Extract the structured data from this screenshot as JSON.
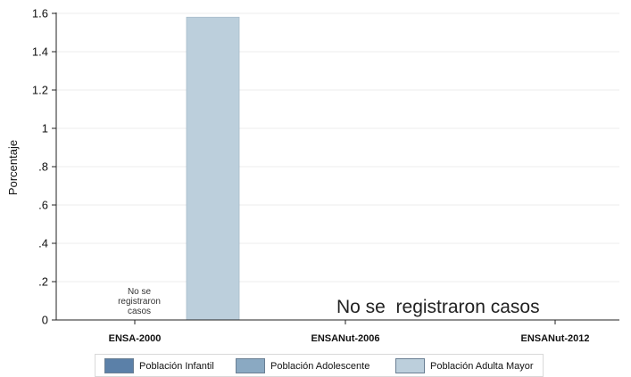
{
  "chart_data": {
    "type": "bar",
    "categories": [
      "ENSA-2000",
      "ENSANut-2006",
      "ENSANut-2012"
    ],
    "series": [
      {
        "name": "Población Infantil",
        "color": "#5b80a8",
        "values": [
          null,
          null,
          null
        ]
      },
      {
        "name": "Población Adolescente",
        "color": "#8aa9c2",
        "values": [
          null,
          null,
          null
        ]
      },
      {
        "name": "Población Adulta Mayor",
        "color": "#bccfdc",
        "values": [
          1.58,
          null,
          null
        ]
      }
    ],
    "ylabel": "Porcentaje",
    "ylim": [
      0,
      1.6
    ],
    "yticks": [
      0,
      0.2,
      0.4,
      0.6,
      0.8,
      1,
      1.2,
      1.4,
      1.6
    ],
    "ytick_labels": [
      "0",
      ".2",
      ".4",
      ".6",
      ".8",
      "1",
      "1.2",
      "1.4",
      "1.6"
    ],
    "grid": true,
    "legend_position": "bottom",
    "annotations": [
      "No se registraron casos",
      "No se  registraron casos"
    ]
  }
}
